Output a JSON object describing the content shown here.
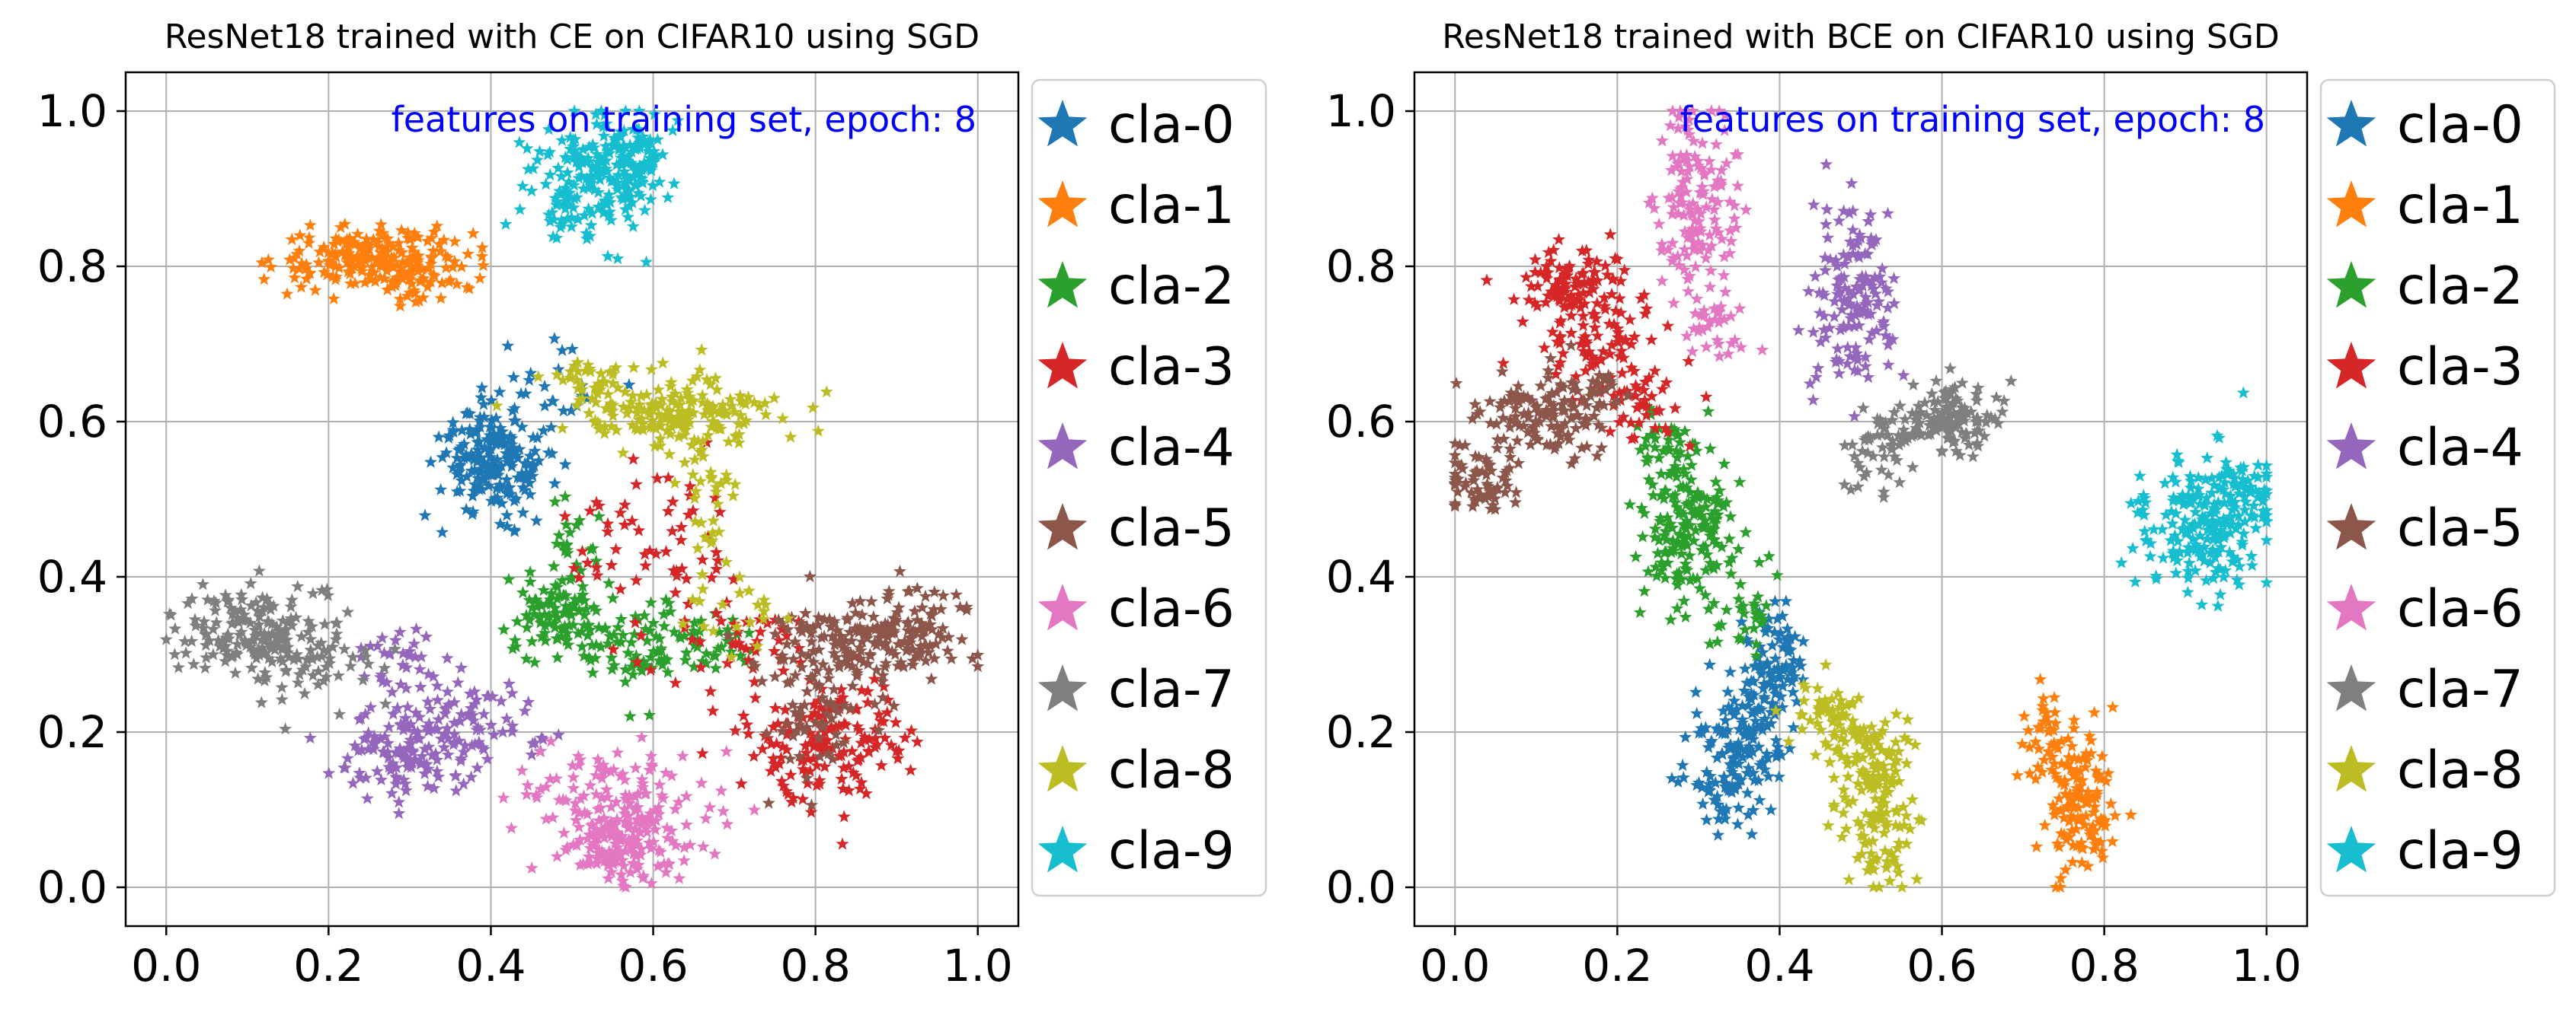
{
  "palette": [
    "#1f77b4",
    "#ff7f0e",
    "#2ca02c",
    "#d62728",
    "#9467bd",
    "#8c564b",
    "#e377c2",
    "#7f7f7f",
    "#bcbd22",
    "#17becf"
  ],
  "annotation_color": "#0000ff",
  "chart_data": [
    {
      "type": "scatter",
      "title": "ResNet18 trained with CE on CIFAR10 using SGD",
      "annotation": "features on training set, epoch:   8",
      "xlim": [
        -0.05,
        1.05
      ],
      "ylim": [
        -0.05,
        1.05
      ],
      "xticks": [
        "0.0",
        "0.2",
        "0.4",
        "0.6",
        "0.8",
        "1.0"
      ],
      "yticks": [
        "0.0",
        "0.2",
        "0.4",
        "0.6",
        "0.8",
        "1.0"
      ],
      "grid": true,
      "legend_position": "outside-right",
      "marker": "star",
      "series": [
        {
          "name": "cla-0",
          "clusters": [
            [
              0.41,
              0.54,
              0.035,
              0.03,
              150
            ],
            [
              0.38,
              0.58,
              0.02,
              0.02,
              40
            ],
            [
              0.46,
              0.63,
              0.05,
              0.03,
              30
            ]
          ]
        },
        {
          "name": "cla-1",
          "clusters": [
            [
              0.26,
              0.81,
              0.06,
              0.02,
              200
            ],
            [
              0.31,
              0.78,
              0.03,
              0.015,
              30
            ]
          ]
        },
        {
          "name": "cla-2",
          "clusters": [
            [
              0.48,
              0.35,
              0.03,
              0.025,
              80
            ],
            [
              0.57,
              0.31,
              0.05,
              0.03,
              80
            ],
            [
              0.5,
              0.42,
              0.02,
              0.04,
              30
            ],
            [
              0.67,
              0.32,
              0.03,
              0.02,
              30
            ]
          ]
        },
        {
          "name": "cla-3",
          "clusters": [
            [
              0.82,
              0.19,
              0.05,
              0.04,
              160
            ],
            [
              0.65,
              0.42,
              0.03,
              0.08,
              40
            ],
            [
              0.56,
              0.45,
              0.03,
              0.06,
              30
            ],
            [
              0.74,
              0.32,
              0.03,
              0.03,
              30
            ]
          ]
        },
        {
          "name": "cla-4",
          "clusters": [
            [
              0.3,
              0.17,
              0.045,
              0.025,
              120
            ],
            [
              0.38,
              0.21,
              0.04,
              0.03,
              60
            ],
            [
              0.3,
              0.28,
              0.04,
              0.03,
              40
            ]
          ]
        },
        {
          "name": "cla-5",
          "clusters": [
            [
              0.88,
              0.33,
              0.06,
              0.03,
              180
            ],
            [
              0.8,
              0.24,
              0.04,
              0.05,
              80
            ]
          ]
        },
        {
          "name": "cla-6",
          "clusters": [
            [
              0.56,
              0.06,
              0.035,
              0.03,
              160
            ],
            [
              0.6,
              0.1,
              0.05,
              0.04,
              60
            ],
            [
              0.5,
              0.13,
              0.04,
              0.02,
              40
            ]
          ]
        },
        {
          "name": "cla-7",
          "clusters": [
            [
              0.1,
              0.33,
              0.05,
              0.03,
              150
            ],
            [
              0.17,
              0.3,
              0.04,
              0.03,
              60
            ]
          ]
        },
        {
          "name": "cla-8",
          "clusters": [
            [
              0.63,
              0.61,
              0.06,
              0.02,
              150
            ],
            [
              0.67,
              0.55,
              0.02,
              0.06,
              50
            ],
            [
              0.52,
              0.65,
              0.03,
              0.015,
              40
            ],
            [
              0.7,
              0.35,
              0.03,
              0.03,
              20
            ]
          ]
        },
        {
          "name": "cla-9",
          "clusters": [
            [
              0.53,
              0.91,
              0.04,
              0.04,
              200
            ],
            [
              0.57,
              0.95,
              0.025,
              0.025,
              50
            ]
          ]
        }
      ]
    },
    {
      "type": "scatter",
      "title": "ResNet18 trained with BCE on CIFAR10 using SGD",
      "annotation": "features on training set, epoch:   8",
      "xlim": [
        -0.05,
        1.05
      ],
      "ylim": [
        -0.05,
        1.05
      ],
      "xticks": [
        "0.0",
        "0.2",
        "0.4",
        "0.6",
        "0.8",
        "1.0"
      ],
      "yticks": [
        "0.0",
        "0.2",
        "0.4",
        "0.6",
        "0.8",
        "1.0"
      ],
      "grid": true,
      "legend_position": "outside-right",
      "marker": "star",
      "series": [
        {
          "name": "cla-0",
          "clusters": [
            [
              0.34,
              0.16,
              0.025,
              0.04,
              120
            ],
            [
              0.38,
              0.25,
              0.02,
              0.05,
              80
            ],
            [
              0.4,
              0.3,
              0.015,
              0.04,
              40
            ]
          ]
        },
        {
          "name": "cla-1",
          "clusters": [
            [
              0.77,
              0.11,
              0.02,
              0.05,
              130
            ],
            [
              0.73,
              0.19,
              0.015,
              0.03,
              40
            ]
          ]
        },
        {
          "name": "cla-2",
          "clusters": [
            [
              0.29,
              0.46,
              0.03,
              0.05,
              160
            ],
            [
              0.26,
              0.56,
              0.02,
              0.03,
              40
            ],
            [
              0.36,
              0.36,
              0.02,
              0.03,
              30
            ]
          ]
        },
        {
          "name": "cla-3",
          "clusters": [
            [
              0.14,
              0.78,
              0.03,
              0.025,
              90
            ],
            [
              0.18,
              0.7,
              0.035,
              0.04,
              80
            ],
            [
              0.23,
              0.62,
              0.03,
              0.03,
              40
            ]
          ]
        },
        {
          "name": "cla-4",
          "clusters": [
            [
              0.49,
              0.76,
              0.025,
              0.06,
              150
            ]
          ]
        },
        {
          "name": "cla-5",
          "clusters": [
            [
              0.1,
              0.6,
              0.04,
              0.03,
              120
            ],
            [
              0.03,
              0.52,
              0.025,
              0.02,
              60
            ],
            [
              0.16,
              0.64,
              0.03,
              0.02,
              30
            ]
          ]
        },
        {
          "name": "cla-6",
          "clusters": [
            [
              0.3,
              0.88,
              0.025,
              0.06,
              140
            ],
            [
              0.32,
              0.72,
              0.02,
              0.03,
              30
            ]
          ]
        },
        {
          "name": "cla-7",
          "clusters": [
            [
              0.6,
              0.6,
              0.04,
              0.02,
              130
            ],
            [
              0.52,
              0.56,
              0.02,
              0.03,
              40
            ]
          ]
        },
        {
          "name": "cla-8",
          "clusters": [
            [
              0.52,
              0.12,
              0.025,
              0.05,
              150
            ],
            [
              0.46,
              0.22,
              0.025,
              0.03,
              60
            ]
          ]
        },
        {
          "name": "cla-9",
          "clusters": [
            [
              0.92,
              0.47,
              0.04,
              0.04,
              200
            ],
            [
              0.97,
              0.52,
              0.02,
              0.02,
              40
            ]
          ]
        }
      ]
    }
  ]
}
